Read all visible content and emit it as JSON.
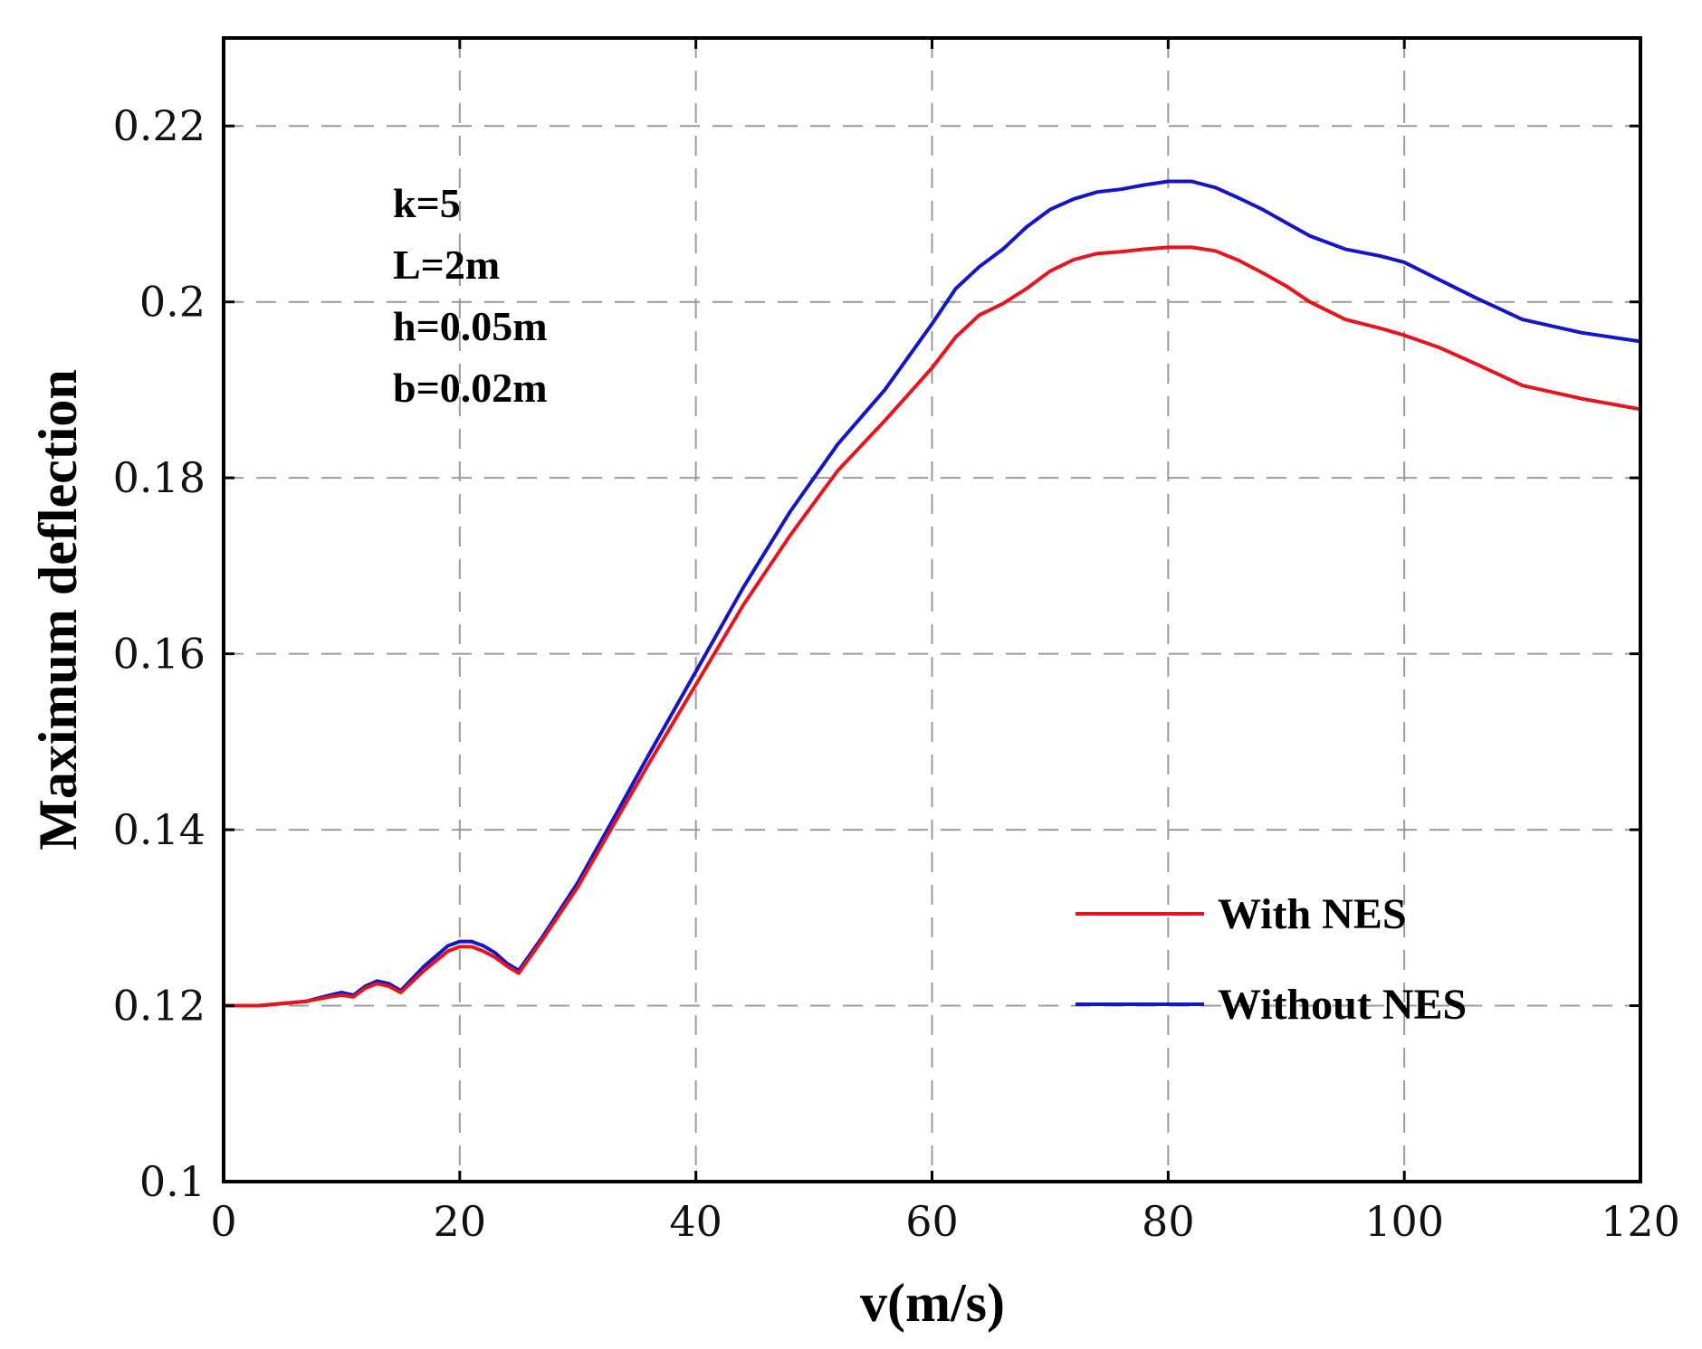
{
  "chart_data": {
    "type": "line",
    "xlabel": "v(m/s)",
    "ylabel": "Maximum deflection",
    "xlim": [
      0,
      120
    ],
    "ylim": [
      0.1,
      0.23
    ],
    "xticks": [
      0,
      20,
      40,
      60,
      80,
      100,
      120
    ],
    "xtick_labels": [
      "0",
      "20",
      "40",
      "60",
      "80",
      "100",
      "120"
    ],
    "yticks": [
      0.1,
      0.12,
      0.14,
      0.16,
      0.18,
      0.2,
      0.22
    ],
    "ytick_labels": [
      "0.1",
      "0.12",
      "0.14",
      "0.16",
      "0.18",
      "0.2",
      "0.22"
    ],
    "grid": true,
    "legend_position": "bottom-right",
    "annotations": [
      "k=5",
      "L=2m",
      "h=0.05m",
      "b=0.02m"
    ],
    "series": [
      {
        "name": "With NES",
        "color": "#e8141c",
        "x": [
          0,
          3,
          7,
          9,
          10,
          11,
          12,
          13,
          14,
          15,
          17,
          19,
          20,
          21,
          22,
          23,
          24,
          25,
          27,
          30,
          33,
          36,
          40,
          44,
          48,
          52,
          56,
          60,
          62,
          64,
          66,
          68,
          70,
          72,
          74,
          76,
          78,
          80,
          82,
          84,
          86,
          88,
          90,
          92,
          95,
          98,
          100,
          103,
          106,
          110,
          115,
          120
        ],
        "values": [
          0.12,
          0.12,
          0.1205,
          0.121,
          0.1212,
          0.121,
          0.122,
          0.1225,
          0.1222,
          0.1215,
          0.124,
          0.1262,
          0.1267,
          0.1267,
          0.1262,
          0.1255,
          0.1245,
          0.1237,
          0.1275,
          0.1335,
          0.1405,
          0.1475,
          0.1565,
          0.1655,
          0.1735,
          0.1808,
          0.1865,
          0.1925,
          0.196,
          0.1985,
          0.1998,
          0.2015,
          0.2035,
          0.2048,
          0.2055,
          0.2057,
          0.206,
          0.2062,
          0.2062,
          0.2058,
          0.2047,
          0.2033,
          0.2018,
          0.2,
          0.198,
          0.197,
          0.1962,
          0.1948,
          0.193,
          0.1905,
          0.189,
          0.1878
        ]
      },
      {
        "name": "Without NES",
        "color": "#1414c8",
        "x": [
          0,
          3,
          7,
          9,
          10,
          11,
          12,
          13,
          14,
          15,
          17,
          19,
          20,
          21,
          22,
          23,
          24,
          25,
          27,
          30,
          33,
          36,
          40,
          44,
          48,
          52,
          56,
          60,
          62,
          64,
          66,
          68,
          70,
          72,
          74,
          76,
          78,
          80,
          82,
          84,
          86,
          88,
          90,
          92,
          95,
          98,
          100,
          103,
          106,
          110,
          115,
          120
        ],
        "values": [
          0.12,
          0.12,
          0.1205,
          0.1212,
          0.1215,
          0.1212,
          0.1222,
          0.1228,
          0.1225,
          0.1217,
          0.1245,
          0.1268,
          0.1273,
          0.1273,
          0.1268,
          0.126,
          0.1248,
          0.124,
          0.1278,
          0.134,
          0.1412,
          0.1485,
          0.158,
          0.1675,
          0.1762,
          0.1838,
          0.19,
          0.1975,
          0.2015,
          0.204,
          0.206,
          0.2085,
          0.2105,
          0.2117,
          0.2125,
          0.2128,
          0.2133,
          0.2137,
          0.2137,
          0.213,
          0.2118,
          0.2105,
          0.209,
          0.2075,
          0.206,
          0.2052,
          0.2045,
          0.2025,
          0.2005,
          0.198,
          0.1965,
          0.1955
        ]
      }
    ]
  }
}
